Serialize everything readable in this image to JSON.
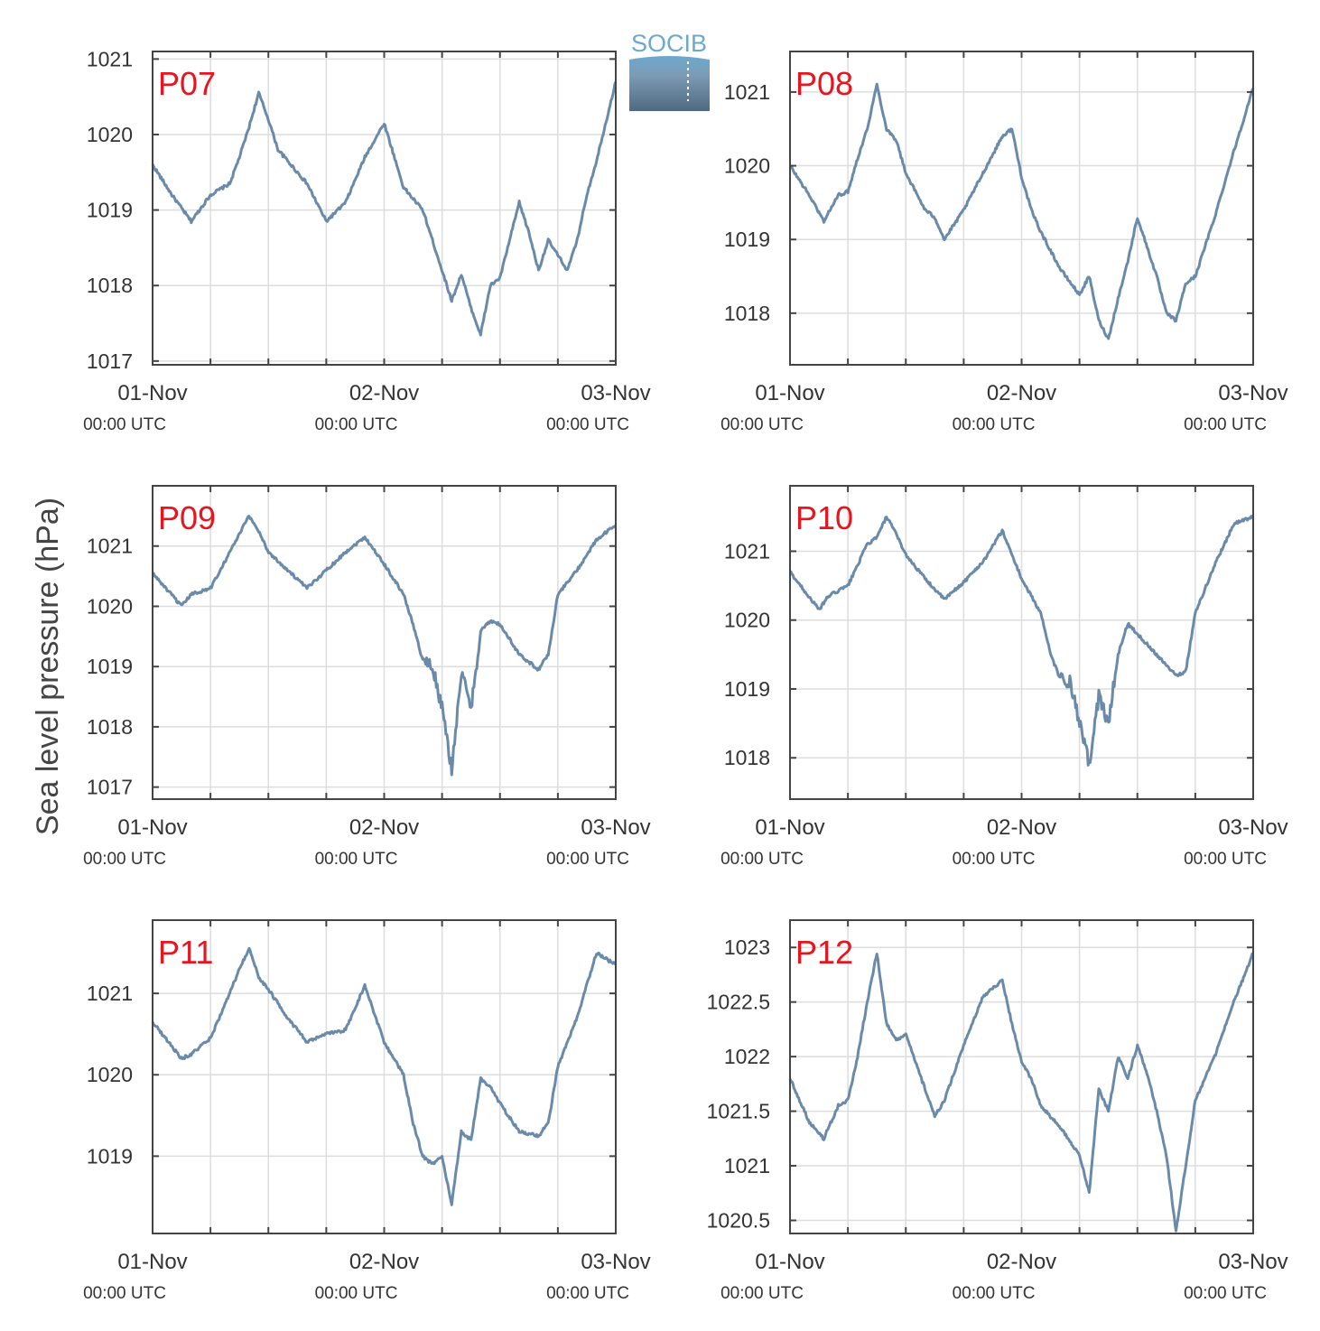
{
  "figure": {
    "ylabel": "Sea level pressure (hPa)",
    "logo_text": "SOCIB",
    "colors": {
      "line": "#6a8aaa",
      "grid": "#dddddd",
      "frame": "#444444",
      "panel_label": "#e8151f",
      "logo_top": "#6ba9cf",
      "logo_bottom": "#4e6a82"
    }
  },
  "chart_data": [
    {
      "type": "line",
      "title": "P07",
      "xlabel": "",
      "ylabel": "",
      "x_range": [
        "01-Nov 00:00",
        "03-Nov 00:00"
      ],
      "ylim": [
        1016.95,
        1021.1
      ],
      "yticks": [
        1017,
        1018,
        1019,
        1020,
        1021
      ],
      "ytick_labels": [
        "1017",
        "1018",
        "1019",
        "1020",
        "1021"
      ],
      "xtick_labels": [
        [
          "01-Nov",
          "00:00 UTC"
        ],
        [
          "02-Nov",
          "00:00 UTC"
        ],
        [
          "03-Nov",
          "00:00 UTC"
        ]
      ],
      "grid": true,
      "series": [
        {
          "x": [
            0,
            2,
            4,
            6,
            8,
            9,
            10,
            11,
            12,
            13,
            14,
            16,
            18,
            20,
            22,
            24,
            26,
            28,
            30,
            31,
            32,
            33,
            34,
            35,
            36,
            37,
            38,
            39,
            40,
            41,
            42,
            43,
            44,
            45,
            46,
            48
          ],
          "y": [
            1019.6,
            1019.2,
            1018.85,
            1019.2,
            1019.35,
            1019.7,
            1020.1,
            1020.55,
            1020.2,
            1019.8,
            1019.65,
            1019.35,
            1018.85,
            1019.1,
            1019.7,
            1020.15,
            1019.3,
            1019.0,
            1018.2,
            1017.8,
            1018.15,
            1017.7,
            1017.35,
            1018.0,
            1018.1,
            1018.6,
            1019.1,
            1018.7,
            1018.2,
            1018.6,
            1018.4,
            1018.2,
            1018.6,
            1019.2,
            1019.65,
            1020.7
          ]
        }
      ]
    },
    {
      "type": "line",
      "title": "P08",
      "xlabel": "",
      "ylabel": "",
      "x_range": [
        "01-Nov 00:00",
        "03-Nov 00:00"
      ],
      "ylim": [
        1017.3,
        1021.55
      ],
      "yticks": [
        1018,
        1019,
        1020,
        1021
      ],
      "ytick_labels": [
        "1018",
        "1019",
        "1020",
        "1021"
      ],
      "xtick_labels": [
        [
          "01-Nov",
          "00:00 UTC"
        ],
        [
          "02-Nov",
          "00:00 UTC"
        ],
        [
          "03-Nov",
          "00:00 UTC"
        ]
      ],
      "grid": true,
      "series": [
        {
          "x": [
            0,
            2,
            3.5,
            5,
            6,
            7,
            8,
            9,
            10,
            11,
            12,
            14,
            15,
            16,
            18,
            20,
            22,
            23,
            24,
            25,
            26,
            28,
            30,
            31,
            32,
            33,
            34,
            35,
            36,
            37,
            38,
            39,
            40,
            41,
            42,
            44,
            46,
            48
          ],
          "y": [
            1020.0,
            1019.6,
            1019.25,
            1019.6,
            1019.65,
            1020.1,
            1020.5,
            1021.1,
            1020.5,
            1020.35,
            1019.9,
            1019.4,
            1019.3,
            1019.0,
            1019.4,
            1019.9,
            1020.4,
            1020.5,
            1019.85,
            1019.4,
            1019.1,
            1018.6,
            1018.25,
            1018.5,
            1017.9,
            1017.65,
            1018.2,
            1018.7,
            1019.3,
            1018.9,
            1018.5,
            1018.0,
            1017.9,
            1018.4,
            1018.5,
            1019.3,
            1020.2,
            1021.05
          ]
        }
      ]
    },
    {
      "type": "line",
      "title": "P09",
      "xlabel": "",
      "ylabel": "",
      "x_range": [
        "01-Nov 00:00",
        "03-Nov 00:00"
      ],
      "ylim": [
        1016.8,
        1022.0
      ],
      "yticks": [
        1017,
        1018,
        1019,
        1020,
        1021
      ],
      "ytick_labels": [
        "1017",
        "1018",
        "1019",
        "1020",
        "1021"
      ],
      "xtick_labels": [
        [
          "01-Nov",
          "00:00 UTC"
        ],
        [
          "02-Nov",
          "00:00 UTC"
        ],
        [
          "03-Nov",
          "00:00 UTC"
        ]
      ],
      "grid": true,
      "series": [
        {
          "x": [
            0,
            3,
            4,
            6,
            8,
            9,
            10,
            11,
            12,
            14,
            16,
            18,
            20,
            22,
            24,
            26,
            27,
            28,
            29,
            30,
            31,
            32,
            33,
            34,
            35,
            36,
            38,
            40,
            41,
            42,
            44,
            46,
            48
          ],
          "y": [
            1020.55,
            1020.0,
            1020.2,
            1020.3,
            1020.9,
            1021.2,
            1021.5,
            1021.25,
            1020.9,
            1020.6,
            1020.3,
            1020.6,
            1020.9,
            1021.15,
            1020.7,
            1020.2,
            1019.7,
            1019.1,
            1019.0,
            1018.3,
            1017.3,
            1018.9,
            1018.3,
            1019.6,
            1019.75,
            1019.7,
            1019.2,
            1018.95,
            1019.2,
            1020.2,
            1020.6,
            1021.1,
            1021.35
          ]
        }
      ]
    },
    {
      "type": "line",
      "title": "P10",
      "xlabel": "",
      "ylabel": "",
      "x_range": [
        "01-Nov 00:00",
        "03-Nov 00:00"
      ],
      "ylim": [
        1017.4,
        1021.95
      ],
      "yticks": [
        1018,
        1019,
        1020,
        1021
      ],
      "ytick_labels": [
        "1018",
        "1019",
        "1020",
        "1021"
      ],
      "xtick_labels": [
        [
          "01-Nov",
          "00:00 UTC"
        ],
        [
          "02-Nov",
          "00:00 UTC"
        ],
        [
          "03-Nov",
          "00:00 UTC"
        ]
      ],
      "grid": true,
      "series": [
        {
          "x": [
            0,
            3,
            4,
            6,
            8,
            9,
            10,
            11,
            12,
            14,
            16,
            18,
            20,
            22,
            24,
            26,
            27,
            28,
            29,
            30,
            31,
            32,
            33,
            34,
            35,
            36,
            38,
            40,
            41,
            42,
            44,
            46,
            48
          ],
          "y": [
            1020.7,
            1020.15,
            1020.35,
            1020.5,
            1021.1,
            1021.2,
            1021.5,
            1021.25,
            1020.95,
            1020.6,
            1020.3,
            1020.55,
            1020.85,
            1021.3,
            1020.6,
            1020.1,
            1019.5,
            1019.15,
            1019.1,
            1018.5,
            1017.9,
            1018.9,
            1018.5,
            1019.5,
            1019.95,
            1019.8,
            1019.5,
            1019.2,
            1019.25,
            1020.1,
            1020.8,
            1021.4,
            1021.5
          ]
        }
      ]
    },
    {
      "type": "line",
      "title": "P11",
      "xlabel": "",
      "ylabel": "",
      "x_range": [
        "01-Nov 00:00",
        "03-Nov 00:00"
      ],
      "ylim": [
        1018.05,
        1021.9
      ],
      "yticks": [
        1019,
        1020,
        1021
      ],
      "ytick_labels": [
        "1019",
        "1020",
        "1021"
      ],
      "xtick_labels": [
        [
          "01-Nov",
          "00:00 UTC"
        ],
        [
          "02-Nov",
          "00:00 UTC"
        ],
        [
          "03-Nov",
          "00:00 UTC"
        ]
      ],
      "grid": true,
      "series": [
        {
          "x": [
            0,
            3,
            4,
            6,
            8,
            9,
            10,
            11,
            12,
            14,
            16,
            18,
            20,
            22,
            24,
            26,
            27,
            28,
            29,
            30,
            31,
            32,
            33,
            34,
            35,
            36,
            38,
            40,
            41,
            42,
            44,
            46,
            48
          ],
          "y": [
            1020.65,
            1020.2,
            1020.25,
            1020.45,
            1021.0,
            1021.3,
            1021.55,
            1021.2,
            1021.05,
            1020.7,
            1020.4,
            1020.5,
            1020.55,
            1021.1,
            1020.4,
            1020.0,
            1019.4,
            1019.0,
            1018.9,
            1019.0,
            1018.4,
            1019.3,
            1019.2,
            1019.95,
            1019.85,
            1019.65,
            1019.3,
            1019.25,
            1019.4,
            1020.1,
            1020.7,
            1021.5,
            1021.35
          ]
        }
      ]
    },
    {
      "type": "line",
      "title": "P12",
      "xlabel": "",
      "ylabel": "",
      "x_range": [
        "01-Nov 00:00",
        "03-Nov 00:00"
      ],
      "ylim": [
        1020.38,
        1023.25
      ],
      "yticks": [
        1020.5,
        1021,
        1021.5,
        1022,
        1022.5,
        1023
      ],
      "ytick_labels": [
        "1020.5",
        "1021",
        "1021.5",
        "1022",
        "1022.5",
        "1023"
      ],
      "xtick_labels": [
        [
          "01-Nov",
          "00:00 UTC"
        ],
        [
          "02-Nov",
          "00:00 UTC"
        ],
        [
          "03-Nov",
          "00:00 UTC"
        ]
      ],
      "grid": true,
      "series": [
        {
          "x": [
            0,
            2,
            3.5,
            5,
            6,
            7,
            8,
            9,
            10,
            11,
            12,
            14,
            15,
            16,
            18,
            20,
            22,
            23,
            24,
            25,
            26,
            28,
            30,
            31,
            32,
            33,
            34,
            35,
            36,
            37,
            38,
            39,
            40,
            41,
            42,
            44,
            46,
            48
          ],
          "y": [
            1021.8,
            1021.4,
            1021.25,
            1021.55,
            1021.6,
            1022.0,
            1022.5,
            1022.95,
            1022.3,
            1022.15,
            1022.2,
            1021.7,
            1021.45,
            1021.6,
            1022.1,
            1022.55,
            1022.7,
            1022.3,
            1021.95,
            1021.8,
            1021.55,
            1021.35,
            1021.1,
            1020.75,
            1021.7,
            1021.5,
            1022.0,
            1021.8,
            1022.1,
            1021.85,
            1021.5,
            1021.1,
            1020.4,
            1021.0,
            1021.6,
            1022.0,
            1022.5,
            1022.95
          ]
        }
      ]
    }
  ]
}
